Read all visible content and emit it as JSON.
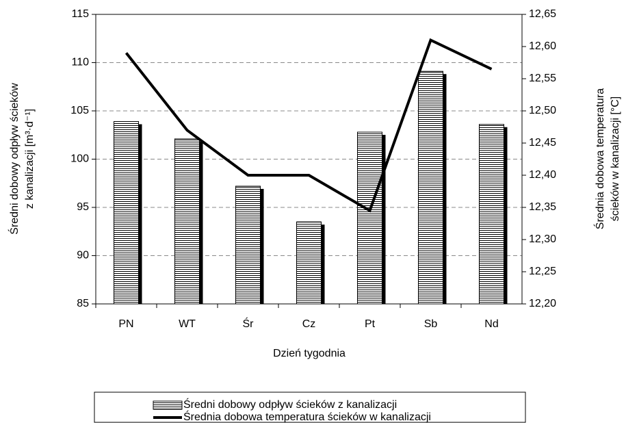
{
  "chart_data": {
    "type": "bar-line",
    "categories": [
      "PN",
      "WT",
      "Śr",
      "Cz",
      "Pt",
      "Sb",
      "Nd"
    ],
    "series": [
      {
        "name": "Średni dobowy odpływ ścieków z kanalizacji",
        "type": "bar",
        "color": "#000000",
        "values": [
          103.9,
          102.1,
          97.2,
          93.5,
          102.8,
          109.1,
          103.6
        ]
      },
      {
        "name": "Średnia dobowa temperatura ścieków w kanalizacji",
        "type": "line",
        "axis": "y2",
        "color": "#000000",
        "values": [
          12.59,
          12.47,
          12.4,
          12.4,
          12.345,
          12.61,
          12.565
        ]
      }
    ],
    "ylim": [
      85,
      115
    ],
    "yticks": [
      85,
      90,
      95,
      100,
      105,
      110,
      115
    ],
    "y2lim": [
      12.2,
      12.65
    ],
    "y2ticks": [
      {
        "value": 12.2,
        "label": "12,20"
      },
      {
        "value": 12.25,
        "label": "12,25"
      },
      {
        "value": 12.3,
        "label": "12,30"
      },
      {
        "value": 12.35,
        "label": "12,35"
      },
      {
        "value": 12.4,
        "label": "12,40"
      },
      {
        "value": 12.45,
        "label": "12,45"
      },
      {
        "value": 12.5,
        "label": "12,50"
      },
      {
        "value": 12.55,
        "label": "12,55"
      },
      {
        "value": 12.6,
        "label": "12,60"
      },
      {
        "value": 12.65,
        "label": "12,65"
      }
    ],
    "xlabel": "Dzień tygodnia",
    "ylabel": [
      "Średni dobowy odpływ ścieków",
      "z kanalizacji [m³·d⁻¹]"
    ],
    "y2label": [
      "Średnia dobowa temperatura",
      "ścieków w kanalizacji [°C]"
    ],
    "grid": true,
    "legend": "bottom"
  }
}
